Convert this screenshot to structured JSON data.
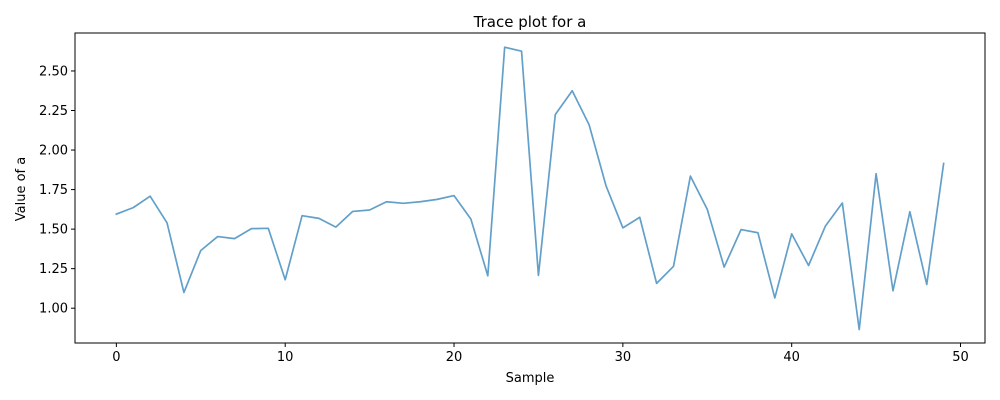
{
  "chart_data": {
    "type": "line",
    "title": "Trace plot for a",
    "xlabel": "Sample",
    "ylabel": "Value of a",
    "xlim": [
      -2.45,
      51.45
    ],
    "ylim": [
      0.78,
      2.74
    ],
    "xticks": [
      0,
      10,
      20,
      30,
      40,
      50
    ],
    "xtick_labels": [
      "0",
      "10",
      "20",
      "30",
      "40",
      "50"
    ],
    "yticks": [
      1.0,
      1.25,
      1.5,
      1.75,
      2.0,
      2.25,
      2.5
    ],
    "ytick_labels": [
      "1.00",
      "1.25",
      "1.50",
      "1.75",
      "2.00",
      "2.25",
      "2.50"
    ],
    "grid": false,
    "series": [
      {
        "name": "a",
        "color": "#1f77b4",
        "alpha": 0.7,
        "x": [
          0,
          1,
          2,
          3,
          4,
          5,
          6,
          7,
          8,
          9,
          10,
          11,
          12,
          13,
          14,
          15,
          16,
          17,
          18,
          19,
          20,
          21,
          22,
          23,
          24,
          25,
          26,
          27,
          28,
          29,
          30,
          31,
          32,
          33,
          34,
          35,
          36,
          37,
          38,
          39,
          40,
          41,
          42,
          43,
          44,
          45,
          46,
          47,
          48,
          49
        ],
        "values": [
          1.595,
          1.636,
          1.708,
          1.54,
          1.1,
          1.365,
          1.453,
          1.44,
          1.503,
          1.505,
          1.18,
          1.585,
          1.568,
          1.513,
          1.612,
          1.621,
          1.673,
          1.663,
          1.673,
          1.688,
          1.712,
          1.563,
          1.205,
          2.65,
          2.625,
          1.207,
          2.225,
          2.375,
          2.16,
          1.775,
          1.508,
          1.575,
          1.157,
          1.265,
          1.835,
          1.625,
          1.26,
          1.497,
          1.477,
          1.065,
          1.47,
          1.27,
          1.52,
          1.665,
          0.865,
          1.85,
          1.11,
          1.61,
          1.15,
          1.915
        ]
      }
    ]
  }
}
